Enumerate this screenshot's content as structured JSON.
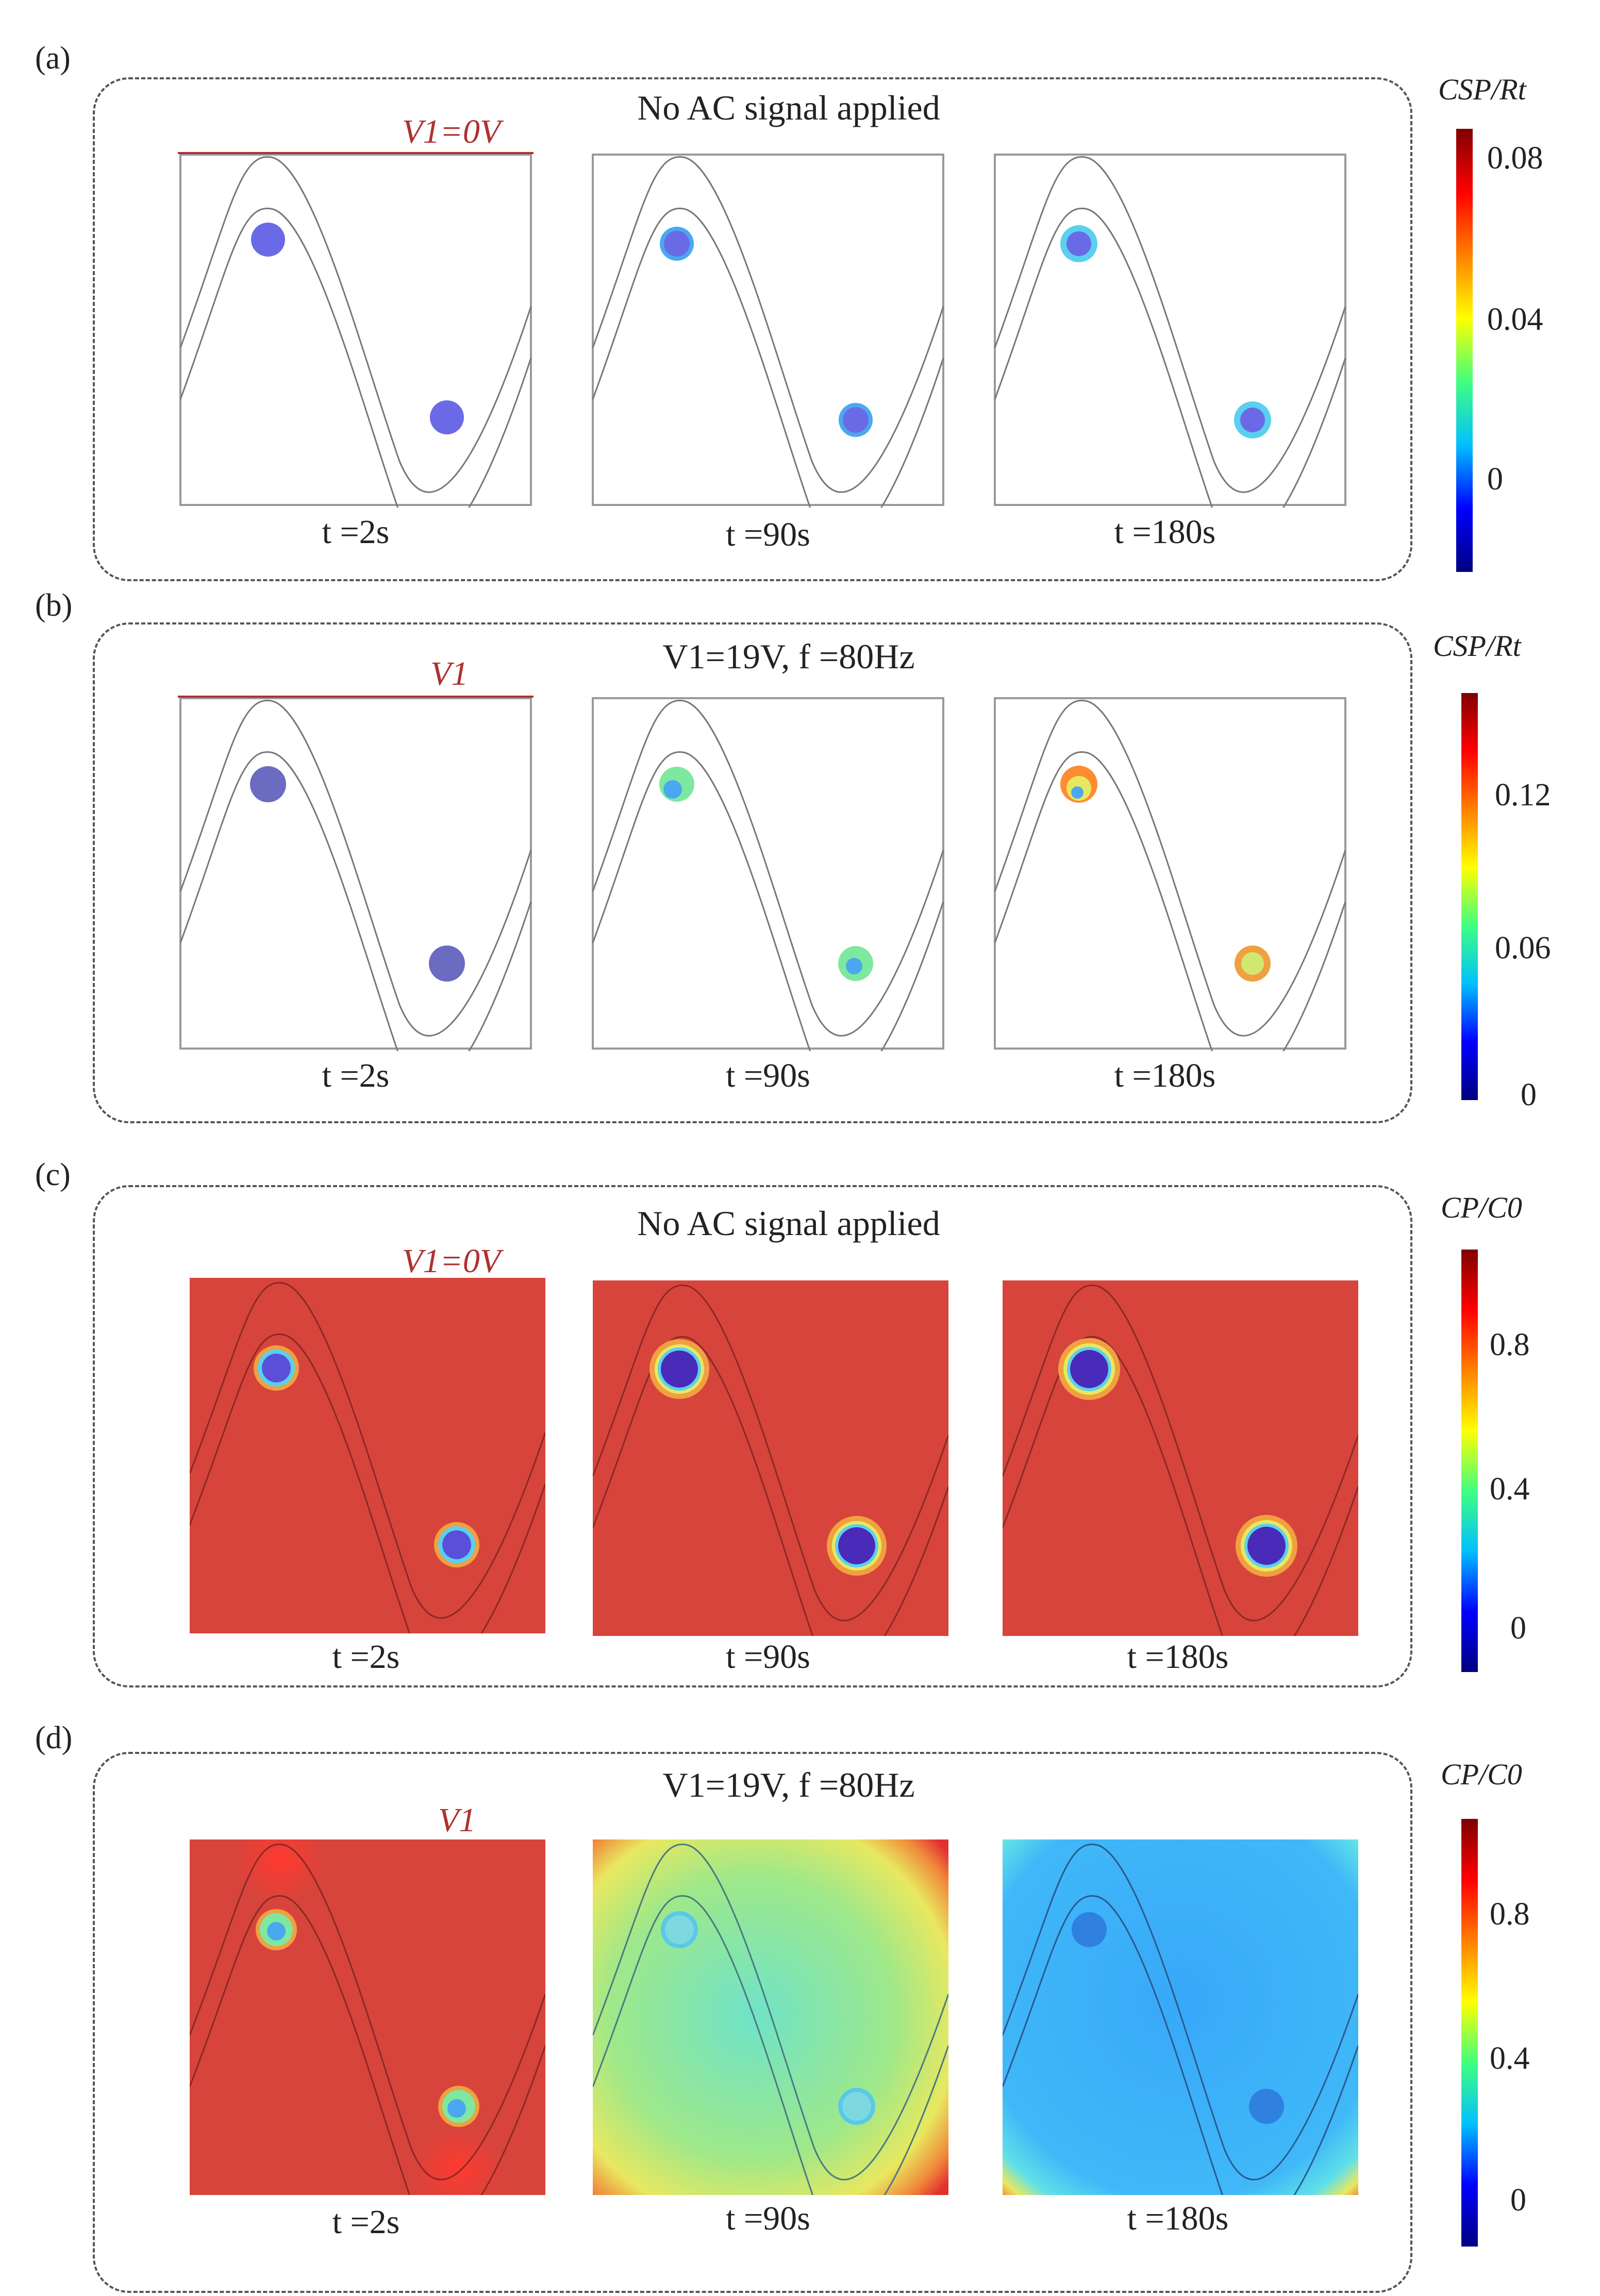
{
  "panels": [
    {
      "letter": "(a)",
      "title": "No AC signal applied",
      "voltage_label": "V1=0V",
      "times": [
        "t =2s",
        "t =90s",
        "t =180s"
      ],
      "colorbar": {
        "title": "CSP/Rt",
        "ticks": [
          "0.08",
          "0.04",
          "0"
        ]
      }
    },
    {
      "letter": "(b)",
      "title": "V1=19V, f =80Hz",
      "voltage_label": "V1",
      "times": [
        "t =2s",
        "t =90s",
        "t =180s"
      ],
      "colorbar": {
        "title": "CSP/Rt",
        "ticks": [
          "0.12",
          "0.06",
          "0"
        ]
      }
    },
    {
      "letter": "(c)",
      "title": "No AC signal applied",
      "voltage_label": "V1=0V",
      "times": [
        "t =2s",
        "t =90s",
        "t =180s"
      ],
      "colorbar": {
        "title": "CP/C0",
        "ticks": [
          "0.8",
          "0.4",
          "0"
        ]
      }
    },
    {
      "letter": "(d)",
      "title": "V1=19V, f =80Hz",
      "voltage_label": "V1",
      "times": [
        "t =2s",
        "t =90s",
        "t =180s"
      ],
      "colorbar": {
        "title": "CP/C0",
        "ticks": [
          "0.8",
          "0.4",
          "0"
        ]
      }
    }
  ],
  "colors": {
    "electrode": "#b03030",
    "jet": [
      "#000080",
      "#0000ff",
      "#00c0ff",
      "#40ff80",
      "#ffff00",
      "#ff8000",
      "#ff0000",
      "#800000"
    ],
    "field_red": "#d7443c",
    "bead_blue": "#6a6ae6"
  }
}
